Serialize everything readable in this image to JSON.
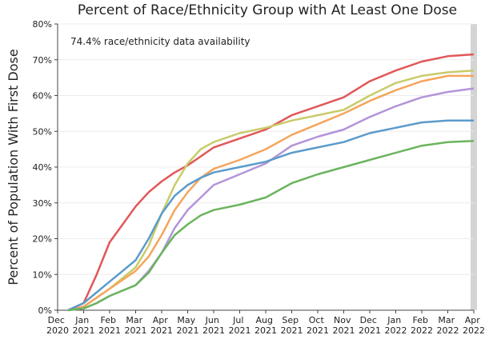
{
  "chart_data": {
    "type": "line",
    "title": "Percent of Race/Ethnicity Group with At Least One Dose",
    "y_label": "Percent of Population With First Dose",
    "annotation": "74.4% race/ethnicity data availability",
    "x": [
      0.4,
      1,
      1.5,
      2,
      2.5,
      3,
      3.5,
      4,
      4.5,
      5,
      5.5,
      6,
      7,
      8,
      9,
      10,
      11,
      12,
      13,
      14,
      15,
      16
    ],
    "series": [
      {
        "color": "#e15759",
        "values": [
          0,
          2,
          10,
          19,
          24,
          29,
          33,
          36,
          38.5,
          40.5,
          43,
          45.5,
          48,
          50.5,
          54.5,
          57,
          59.5,
          64,
          67,
          69.5,
          71,
          71.5
        ]
      },
      {
        "color": "#c9cb6a",
        "values": [
          0,
          1,
          3.5,
          6,
          9,
          12,
          18,
          27,
          35,
          41,
          45,
          47,
          49.5,
          51,
          53,
          54.5,
          56,
          60,
          63.5,
          65.5,
          66.5,
          67
        ]
      },
      {
        "color": "#f5a55c",
        "values": [
          0,
          1,
          3.5,
          6,
          8.5,
          11,
          15,
          21,
          28,
          33,
          37,
          39.5,
          42,
          45,
          49,
          52,
          55,
          58.5,
          61.5,
          64,
          65.5,
          65.5
        ]
      },
      {
        "color": "#b394d9",
        "values": [
          0,
          0.5,
          2,
          4,
          5.5,
          7,
          11,
          16,
          23,
          28,
          31.5,
          35,
          38,
          41,
          46,
          48.5,
          50.5,
          54,
          57,
          59.5,
          61,
          62
        ]
      },
      {
        "color": "#5b9bcb",
        "values": [
          0,
          2,
          5,
          8,
          11,
          14,
          20,
          27,
          32,
          35,
          37,
          38.5,
          40,
          41.5,
          44,
          45.5,
          47,
          49.5,
          51,
          52.5,
          53,
          53
        ]
      },
      {
        "color": "#6bb45e",
        "values": [
          0,
          0.5,
          2,
          4,
          5.5,
          7,
          10.5,
          16,
          21,
          24,
          26.5,
          28,
          29.5,
          31.5,
          35.5,
          38,
          40,
          42,
          44,
          46,
          47,
          47.3
        ]
      }
    ],
    "xlim": [
      0,
      16
    ],
    "xticks": [
      {
        "value": 0,
        "label": "Dec 2020"
      },
      {
        "value": 1,
        "label": "Jan 2021"
      },
      {
        "value": 2,
        "label": "Feb 2021"
      },
      {
        "value": 3,
        "label": "Mar 2021"
      },
      {
        "value": 4,
        "label": "Apr 2021"
      },
      {
        "value": 5,
        "label": "May 2021"
      },
      {
        "value": 6,
        "label": "Jun 2021"
      },
      {
        "value": 7,
        "label": "Jul 2021"
      },
      {
        "value": 8,
        "label": "Aug 2021"
      },
      {
        "value": 9,
        "label": "Sep 2021"
      },
      {
        "value": 10,
        "label": "Oct 2021"
      },
      {
        "value": 11,
        "label": "Nov 2021"
      },
      {
        "value": 12,
        "label": "Dec 2021"
      },
      {
        "value": 13,
        "label": "Jan 2022"
      },
      {
        "value": 14,
        "label": "Feb 2022"
      },
      {
        "value": 15,
        "label": "Mar 2022"
      },
      {
        "value": 16,
        "label": "Apr 2022"
      }
    ],
    "ylim": [
      0,
      80
    ],
    "yticks": [
      {
        "value": 0,
        "label": "0%"
      },
      {
        "value": 10,
        "label": "10%"
      },
      {
        "value": 20,
        "label": "20%"
      },
      {
        "value": 30,
        "label": "30%"
      },
      {
        "value": 40,
        "label": "40%"
      },
      {
        "value": 50,
        "label": "50%"
      },
      {
        "value": 60,
        "label": "60%"
      },
      {
        "value": 70,
        "label": "70%"
      },
      {
        "value": 80,
        "label": "80%"
      }
    ],
    "grid": true
  }
}
